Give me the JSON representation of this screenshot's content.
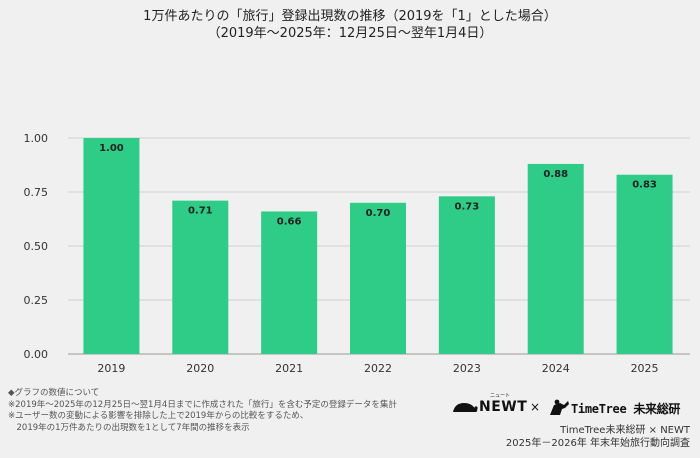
{
  "title": {
    "line1": "1万件あたりの「旅行」登録出現数の推移（2019を「1」とした場合）",
    "line2": "（2019年〜2025年：12月25日〜翌年1月4日）"
  },
  "chart_data": {
    "type": "bar",
    "categories": [
      "2019",
      "2020",
      "2021",
      "2022",
      "2023",
      "2024",
      "2025"
    ],
    "values": [
      1.0,
      0.71,
      0.66,
      0.7,
      0.73,
      0.88,
      0.83
    ],
    "data_labels": [
      "1.00",
      "0.71",
      "0.66",
      "0.70",
      "0.73",
      "0.88",
      "0.83"
    ],
    "ylim": [
      0,
      1.0
    ],
    "yticks": [
      0,
      0.25,
      0.5,
      0.75,
      1.0
    ],
    "ytick_labels": [
      "0.00",
      "0.25",
      "0.50",
      "0.75",
      "1.00"
    ],
    "bar_color": "#2ecc87",
    "grid": true
  },
  "notes": [
    "◆グラフの数値について",
    "※2019年〜2025年の12月25日〜翌1月4日までに作成された「旅行」を含む予定の登録データを集計",
    "※ユーザー数の変動による影響を排除した上で2019年からの比較をするため、",
    "　2019年の1万件あたりの出現数を1として7年間の推移を表示"
  ],
  "logos": {
    "newt": "NEWT",
    "newt_sub": "ニュート",
    "times": "×",
    "timetree": "TimeTree 未来総研"
  },
  "credit": {
    "line1": "TimeTree未来総研 × NEWT",
    "line2": "2025年－2026年 年末年始旅行動向調査"
  }
}
